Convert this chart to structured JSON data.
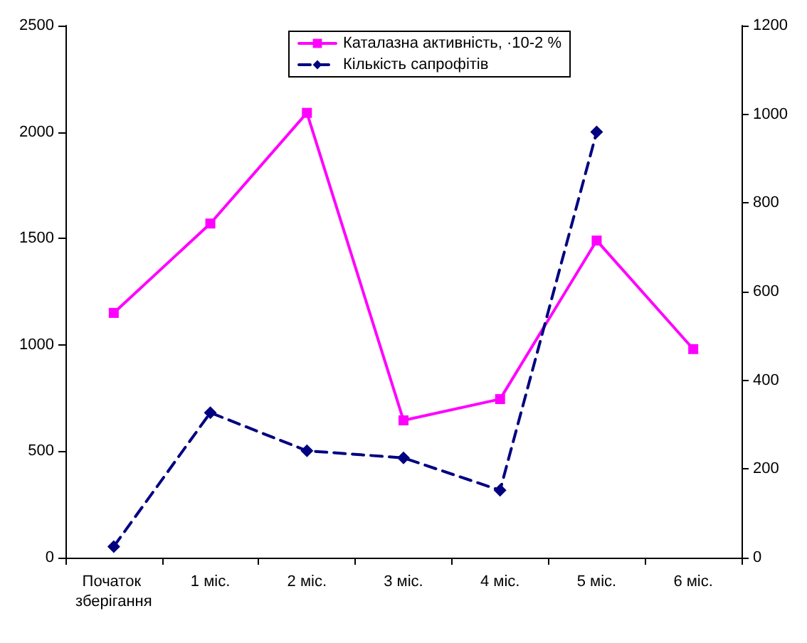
{
  "chart_data": {
    "type": "line",
    "categories": [
      "Початок зберігання",
      "1 міс.",
      "2 міс.",
      "3 міс.",
      "4 міс.",
      "5 міс.",
      "6 міс."
    ],
    "series": [
      {
        "name": "Каталазна активність, ·10-2 %",
        "color": "#ff00ff",
        "marker": "square",
        "line_style": "solid",
        "values": [
          1150,
          1570,
          2090,
          645,
          745,
          1490,
          980
        ]
      },
      {
        "name": "Кількість сапрофітів",
        "color": "#000080",
        "marker": "diamond",
        "line_style": "dashed",
        "axis": "y2",
        "values": [
          25,
          327,
          241,
          225,
          152,
          960,
          null
        ]
      }
    ],
    "ylim": [
      0,
      2500
    ],
    "yticks": [
      0,
      500,
      1000,
      1500,
      2000,
      2500
    ],
    "y2lim": [
      0,
      1200
    ],
    "y2ticks": [
      0,
      200,
      400,
      600,
      800,
      1000,
      1200
    ],
    "grid": false,
    "legend": "top"
  }
}
